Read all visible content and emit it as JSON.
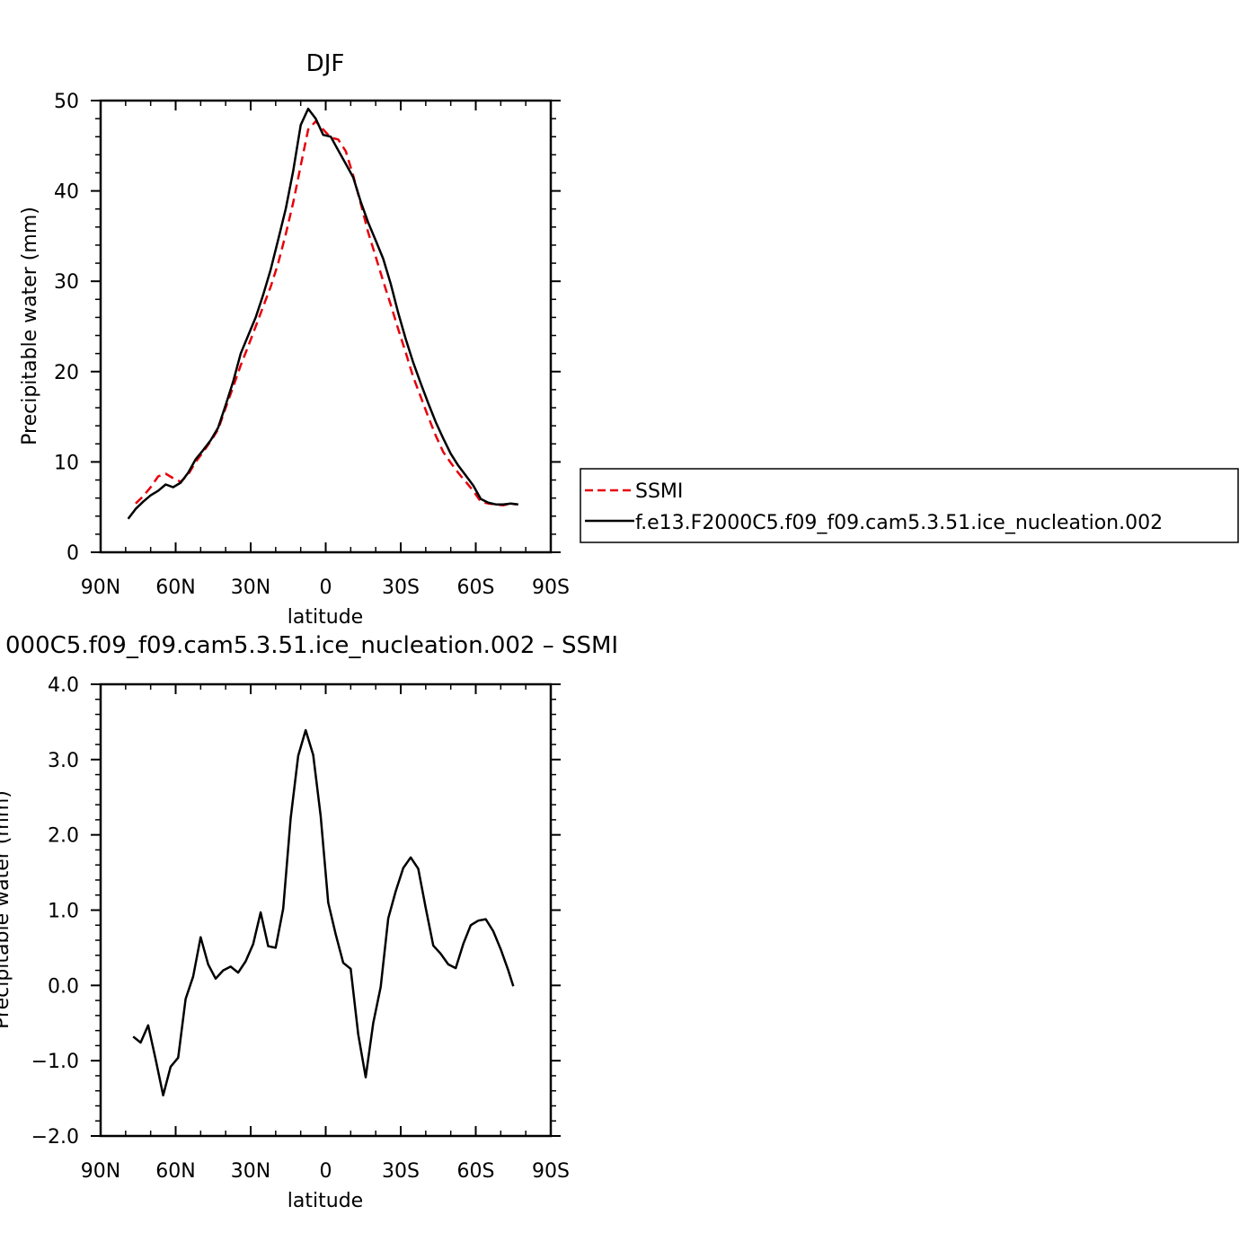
{
  "chart_data": [
    {
      "type": "line",
      "title": "DJF",
      "xlabel": "latitude",
      "ylabel": "Precipitable water (mm)",
      "xlim": [
        -90,
        90
      ],
      "ylim": [
        0,
        50
      ],
      "xticks": [
        {
          "v": -90,
          "label": "90N"
        },
        {
          "v": -60,
          "label": "60N"
        },
        {
          "v": -30,
          "label": "30N"
        },
        {
          "v": 0,
          "label": "0"
        },
        {
          "v": 30,
          "label": "30S"
        },
        {
          "v": 60,
          "label": "60S"
        },
        {
          "v": 90,
          "label": "90S"
        }
      ],
      "yticks": [
        {
          "v": 0,
          "label": "0"
        },
        {
          "v": 10,
          "label": "10"
        },
        {
          "v": 20,
          "label": "20"
        },
        {
          "v": 30,
          "label": "30"
        },
        {
          "v": 40,
          "label": "40"
        },
        {
          "v": 50,
          "label": "50"
        }
      ],
      "legend_position": "right",
      "series": [
        {
          "name": "SSMI",
          "color": "#e8000b",
          "dash": "dashed",
          "x": [
            -76,
            -73,
            -70,
            -67,
            -64,
            -61,
            -58,
            -55,
            -52,
            -49,
            -46,
            -43,
            -40,
            -37,
            -34,
            -31,
            -28,
            -25,
            -22,
            -19,
            -16,
            -13,
            -10,
            -7,
            -4,
            -1,
            2,
            5,
            8,
            11,
            14,
            17,
            20,
            23,
            26,
            29,
            32,
            35,
            38,
            41,
            44,
            47,
            50,
            53,
            56,
            59,
            62,
            65,
            68,
            71,
            74,
            76
          ],
          "y": [
            5.4,
            6.2,
            7.2,
            8.4,
            8.7,
            8.2,
            7.8,
            8.6,
            10.0,
            11.1,
            12.3,
            13.6,
            16.0,
            18.3,
            20.7,
            22.8,
            25.0,
            27.2,
            29.4,
            32.0,
            35.2,
            38.7,
            42.8,
            46.8,
            47.7,
            46.8,
            45.9,
            45.7,
            44.4,
            41.7,
            38.6,
            35.4,
            32.7,
            30.0,
            27.4,
            24.7,
            22.1,
            19.4,
            17.2,
            15.0,
            12.9,
            11.1,
            9.9,
            8.8,
            7.8,
            6.8,
            5.6,
            5.4,
            5.3,
            5.2,
            5.4,
            5.3
          ],
          "y_note_skip": true
        },
        {
          "name": "f.e13.F2000C5.f09_f09.cam5.3.51.ice_nucleation.002",
          "color": "#000000",
          "dash": "solid",
          "x": [
            -79,
            -76,
            -73,
            -70,
            -67,
            -64,
            -61,
            -58,
            -55,
            -52,
            -49,
            -46,
            -43,
            -40,
            -37,
            -34,
            -31,
            -28,
            -25,
            -22,
            -19,
            -16,
            -13,
            -10,
            -7,
            -4,
            -1,
            2,
            5,
            8,
            11,
            14,
            17,
            20,
            23,
            26,
            29,
            32,
            35,
            38,
            41,
            44,
            47,
            50,
            53,
            56,
            59,
            62,
            65,
            68,
            71,
            74,
            77
          ],
          "y": [
            3.7,
            4.8,
            5.6,
            6.3,
            6.8,
            7.5,
            7.2,
            7.7,
            8.8,
            10.3,
            11.3,
            12.4,
            13.8,
            16.3,
            18.9,
            22.0,
            24.0,
            26.0,
            28.5,
            31.3,
            34.6,
            38.0,
            42.2,
            47.3,
            49.1,
            48.0,
            46.2,
            46.0,
            44.5,
            43.0,
            41.5,
            38.8,
            36.5,
            34.5,
            32.5,
            29.7,
            26.5,
            23.6,
            21.0,
            18.7,
            16.5,
            14.4,
            12.6,
            10.9,
            9.6,
            8.5,
            7.4,
            5.9,
            5.5,
            5.3,
            5.3,
            5.4,
            5.3
          ]
        }
      ]
    },
    {
      "type": "line",
      "title": "000C5.f09_f09.cam5.3.51.ice_nucleation.002  –  SSMI",
      "xlabel": "latitude",
      "ylabel": "Precipitable water (mm)",
      "xlim": [
        -90,
        90
      ],
      "ylim": [
        -2.0,
        4.0
      ],
      "xticks": [
        {
          "v": -90,
          "label": "90N"
        },
        {
          "v": -60,
          "label": "60N"
        },
        {
          "v": -30,
          "label": "30N"
        },
        {
          "v": 0,
          "label": "0"
        },
        {
          "v": 30,
          "label": "30S"
        },
        {
          "v": 60,
          "label": "60S"
        },
        {
          "v": 90,
          "label": "90S"
        }
      ],
      "yticks": [
        {
          "v": -2.0,
          "label": "−2.0"
        },
        {
          "v": -1.0,
          "label": "−1.0"
        },
        {
          "v": 0.0,
          "label": "0.0"
        },
        {
          "v": 1.0,
          "label": "1.0"
        },
        {
          "v": 2.0,
          "label": "2.0"
        },
        {
          "v": 3.0,
          "label": "3.0"
        },
        {
          "v": 4.0,
          "label": "4.0"
        }
      ],
      "series": [
        {
          "color": "#000000",
          "dash": "solid",
          "x": [
            -77,
            -74,
            -71,
            -68,
            -65,
            -62,
            -59,
            -56,
            -53,
            -50,
            -47,
            -44,
            -41,
            -38,
            -35,
            -32,
            -29,
            -26,
            -23,
            -20,
            -17,
            -14,
            -11,
            -8,
            -5,
            -2,
            1,
            4,
            7,
            10,
            13,
            16,
            19,
            22,
            25,
            28,
            31,
            34,
            37,
            40,
            43,
            46,
            49,
            52,
            55,
            58,
            61,
            64,
            67,
            70,
            73,
            75
          ],
          "y": [
            -0.68,
            -0.76,
            -0.53,
            -0.98,
            -1.46,
            -1.08,
            -0.96,
            -0.18,
            0.12,
            0.64,
            0.28,
            0.09,
            0.2,
            0.25,
            0.17,
            0.32,
            0.55,
            0.97,
            0.52,
            0.5,
            1.02,
            2.22,
            3.05,
            3.39,
            3.06,
            2.25,
            1.1,
            0.68,
            0.3,
            0.22,
            -0.65,
            -1.22,
            -0.5,
            -0.02,
            0.89,
            1.25,
            1.56,
            1.7,
            1.55,
            1.03,
            0.53,
            0.42,
            0.28,
            0.23,
            0.55,
            0.8,
            0.86,
            0.88,
            0.72,
            0.48,
            0.2,
            -0.01
          ]
        }
      ]
    }
  ]
}
